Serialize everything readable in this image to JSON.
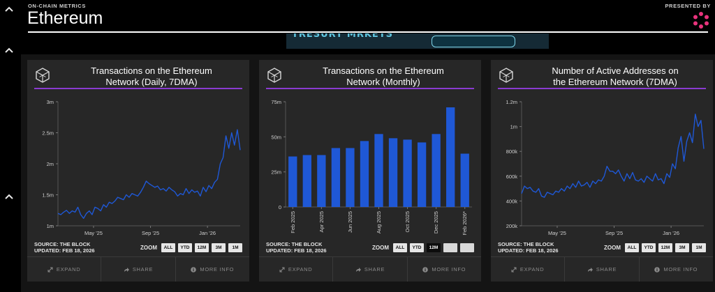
{
  "header": {
    "kicker": "ON-CHAIN METRICS",
    "title": "Ethereum",
    "presented_by": "PRESENTED BY"
  },
  "banner": {
    "text": "TRESURY MRKETS"
  },
  "cards": [
    {
      "title_line1": "Transactions on the Ethereum",
      "title_line2": "Network (Daily, 7DMA)",
      "source": "SOURCE: THE BLOCK",
      "updated": "UPDATED: FEB 18, 2026",
      "zoom_label": "ZOOM",
      "zoom_buttons": [
        "ALL",
        "YTD",
        "12M",
        "3M",
        "1M"
      ],
      "actions": [
        "EXPAND",
        "SHARE",
        "MORE INFO"
      ]
    },
    {
      "title_line1": "Transactions on the Ethereum",
      "title_line2": "Network (Monthly)",
      "source": "SOURCE: THE BLOCK",
      "updated": "UPDATED: FEB 18, 2026",
      "zoom_label": "ZOOM",
      "zoom_buttons": [
        "ALL",
        "YTD",
        "12M",
        "",
        ""
      ],
      "actions": [
        "EXPAND",
        "SHARE",
        "MORE INFO"
      ]
    },
    {
      "title_line1": "Number of Active Addresses on",
      "title_line2": "the Ethereum Network (7DMA)",
      "source": "SOURCE: THE BLOCK",
      "updated": "UPDATED: FEB 18, 2026",
      "zoom_label": "ZOOM",
      "zoom_buttons": [
        "ALL",
        "YTD",
        "12M",
        "3M",
        "1M"
      ],
      "actions": [
        "EXPAND",
        "SHARE",
        "MORE INFO"
      ]
    }
  ],
  "colors": {
    "series": "#1f58d6",
    "accent": "#8a3bd1",
    "logo": "#e8337c"
  },
  "chart_data": [
    {
      "type": "line",
      "title": "Transactions on the Ethereum Network (Daily, 7DMA)",
      "y_tick_labels": [
        "1m",
        "1.5m",
        "2m",
        "2.5m",
        "3m"
      ],
      "y_ticks": [
        1.0,
        1.5,
        2.0,
        2.5,
        3.0
      ],
      "ylim": [
        1.0,
        3.0
      ],
      "x_tick_labels": [
        "May '25",
        "Sep '25",
        "Jan '26"
      ],
      "x_ticks": [
        2.5,
        6.5,
        10.5
      ],
      "xlim": [
        0,
        12.8
      ],
      "x": [
        0,
        0.2,
        0.4,
        0.6,
        0.8,
        1.0,
        1.2,
        1.4,
        1.6,
        1.8,
        2.0,
        2.2,
        2.4,
        2.6,
        2.8,
        3.0,
        3.2,
        3.4,
        3.6,
        3.8,
        4.0,
        4.2,
        4.4,
        4.6,
        4.8,
        5.0,
        5.2,
        5.4,
        5.6,
        5.8,
        6.0,
        6.2,
        6.4,
        6.6,
        6.8,
        7.0,
        7.2,
        7.4,
        7.6,
        7.8,
        8.0,
        8.2,
        8.4,
        8.6,
        8.8,
        9.0,
        9.2,
        9.4,
        9.6,
        9.8,
        10.0,
        10.2,
        10.4,
        10.6,
        10.8,
        11.0,
        11.2,
        11.4,
        11.6,
        11.8,
        12.0,
        12.2,
        12.4,
        12.6,
        12.8
      ],
      "y": [
        1.2,
        1.18,
        1.22,
        1.25,
        1.2,
        1.24,
        1.22,
        1.3,
        1.18,
        1.12,
        1.2,
        1.24,
        1.18,
        1.3,
        1.28,
        1.24,
        1.34,
        1.3,
        1.38,
        1.36,
        1.4,
        1.46,
        1.44,
        1.42,
        1.5,
        1.46,
        1.52,
        1.5,
        1.48,
        1.54,
        1.62,
        1.72,
        1.68,
        1.65,
        1.62,
        1.64,
        1.58,
        1.6,
        1.56,
        1.62,
        1.58,
        1.55,
        1.48,
        1.52,
        1.5,
        1.6,
        1.52,
        1.58,
        1.54,
        1.56,
        1.48,
        1.62,
        1.55,
        1.65,
        1.6,
        1.7,
        1.75,
        2.0,
        2.1,
        2.45,
        2.25,
        2.5,
        2.3,
        2.55,
        2.22
      ]
    },
    {
      "type": "bar",
      "title": "Transactions on the Ethereum Network (Monthly)",
      "categories": [
        "Feb 2025",
        "Mar 2025",
        "Apr 2025",
        "May 2025",
        "Jun 2025",
        "Jul 2025",
        "Aug 2025",
        "Sep 2025",
        "Oct 2025",
        "Nov 2025",
        "Dec 2025",
        "Jan 2026",
        "Feb 2026*"
      ],
      "x_tick_labels": [
        "Feb 2025",
        "Apr 2025",
        "Jun 2025",
        "Aug 2025",
        "Oct 2025",
        "Dec 2025",
        "Feb 2026*"
      ],
      "values": [
        36,
        37,
        37,
        42,
        42,
        47,
        52,
        49,
        48,
        46,
        52,
        71,
        38
      ],
      "y_tick_labels": [
        "0",
        "25m",
        "50m",
        "75m"
      ],
      "y_ticks": [
        0,
        25,
        50,
        75
      ],
      "ylim": [
        0,
        75
      ],
      "ylabel": "millions"
    },
    {
      "type": "line",
      "title": "Number of Active Addresses on the Ethereum Network (7DMA)",
      "y_tick_labels": [
        "200k",
        "400k",
        "600k",
        "800k",
        "1m",
        "1.2m"
      ],
      "y_ticks": [
        200,
        400,
        600,
        800,
        1000,
        1200
      ],
      "ylim": [
        200,
        1200
      ],
      "x_tick_labels": [
        "May '25",
        "Sep '25",
        "Jan '26"
      ],
      "x_ticks": [
        2.5,
        6.5,
        10.5
      ],
      "xlim": [
        0,
        12.8
      ],
      "x": [
        0,
        0.2,
        0.4,
        0.6,
        0.8,
        1.0,
        1.2,
        1.4,
        1.6,
        1.8,
        2.0,
        2.2,
        2.4,
        2.6,
        2.8,
        3.0,
        3.2,
        3.4,
        3.6,
        3.8,
        4.0,
        4.2,
        4.4,
        4.6,
        4.8,
        5.0,
        5.2,
        5.4,
        5.6,
        5.8,
        6.0,
        6.2,
        6.4,
        6.6,
        6.8,
        7.0,
        7.2,
        7.4,
        7.6,
        7.8,
        8.0,
        8.2,
        8.4,
        8.6,
        8.8,
        9.0,
        9.2,
        9.4,
        9.6,
        9.8,
        10.0,
        10.2,
        10.4,
        10.6,
        10.8,
        11.0,
        11.2,
        11.4,
        11.6,
        11.8,
        12.0,
        12.2,
        12.4,
        12.6,
        12.8
      ],
      "y": [
        460,
        520,
        500,
        510,
        480,
        470,
        500,
        440,
        430,
        470,
        460,
        450,
        480,
        470,
        500,
        480,
        520,
        500,
        540,
        510,
        560,
        520,
        530,
        550,
        510,
        560,
        540,
        570,
        560,
        600,
        680,
        640,
        640,
        620,
        650,
        600,
        560,
        620,
        580,
        630,
        570,
        560,
        580,
        550,
        600,
        580,
        560,
        620,
        570,
        580,
        540,
        620,
        590,
        700,
        660,
        830,
        920,
        720,
        880,
        950,
        870,
        1100,
        1000,
        1050,
        820
      ]
    }
  ]
}
